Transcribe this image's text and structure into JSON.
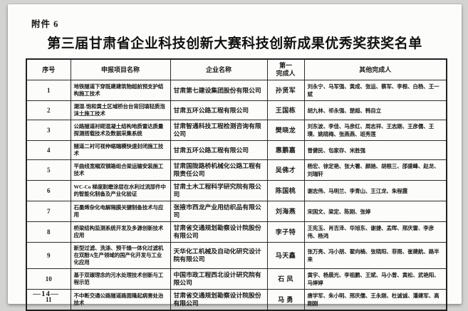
{
  "page": {
    "attachment_label": "附件 6",
    "title": "第三届甘肃省企业科技创新大赛科技创新成果优秀奖获奖名单",
    "page_number": "—14—"
  },
  "colors": {
    "paper": "#fcfcfa",
    "backdrop": "#d3d3d1",
    "ink": "#191919",
    "table_border": "#2b2b2b"
  },
  "table": {
    "headers": {
      "seq": "序号",
      "project": "申报项目名称",
      "company": "企业名称",
      "first_line1": "第一",
      "first_line2": "完成人",
      "others": "其他完成人"
    },
    "rows": [
      {
        "no": "1",
        "project": "地铁隧道下穿既建建筑物超前预支护结构施工技术",
        "company": "甘肃第七建设集团股份有限公司",
        "first": "孙贤军",
        "others": "刘永宁、马军强、黄成、张运、蔡军、李根、白杨、王一斌"
      },
      {
        "no": "2",
        "project": "潮湿-饱和黄土区域桥台台背回填轻质泡沫土施工技术",
        "company": "甘肃五环公路工程有限公司",
        "first": "王国栋",
        "others": "胡九林、祁永强、楚超、韩自立"
      },
      {
        "no": "3",
        "project": "公路隧道衬砌混凝土结构地质雷达质量探测搭载技术及数据采集系统",
        "company": "甘肃智通科技工程检测咨询有限公司",
        "first": "樊晓龙",
        "others": "刘东波、李佳、马彦红、周志祥、王志刚、王彦儒、王璞、姚晓梅、张燕燕、班秀莲"
      },
      {
        "no": "4",
        "project": "隧道二衬可视伸缩端模快速封闭施工技术",
        "company": "甘肃五环公路工程有限公司",
        "first": "惠鹏嘉",
        "others": "曾健民、包家存、米胜强"
      },
      {
        "no": "5",
        "project": "平曲线宽幅双钢箱组合梁运输安装施工技术",
        "company": "甘肃国陇路桥机械化公路工程有限责任公司",
        "first": "吴佛才",
        "others": "杨宏、徐定艳、张大署、颜驰、胡根三、邵盛峰、赵龙、刘瑞轩"
      },
      {
        "no": "6",
        "project": "WC-Co 梯度耐磨涂层在水利过流部件中的智能化制备及产业化验证",
        "company": "甘肃土木工程科学研究院有限公司",
        "first": "陈国桃",
        "others": "谢志伟、马明兰、李青山、王江龙、朱程霞"
      },
      {
        "no": "7",
        "project": "石墨烯杂化电解隔膜关键制备技术与应用",
        "company": "张掖市西龙产业用纺织品有限公司",
        "first": "刘海燕",
        "others": "宋国文、梁定、陈刚、张婷"
      },
      {
        "no": "8",
        "project": "桥梁结构监测系统开发及多源创新技术应用",
        "company": "甘肃省交通规划勘察设计院股份有限公司",
        "first": "李子特",
        "others": "王宪玉、肖吉泽、华旭东、谢捷、孟晖、邢庆雷、李彦伟、杨鸿"
      },
      {
        "no": "9",
        "project": "新型过滤、洗涤、预干燥一体化过滤机在双酚A生产领域的国产化开发与工业化应用",
        "company": "天华化工机械及自动化研究设计院有限公司",
        "first": "马天鑫",
        "others": "张万亮、冯小朋、翟向楠、张晓阳、菲雨、崔建航、路半来"
      },
      {
        "no": "10",
        "project": "基于双碳理念的污水处理技术创新与工程示范",
        "company": "中国市政工程西北设计研究院有限公司",
        "first": "石 凤",
        "others": "黄宇、杨晨光、李祖鹏、王斌、马小曾、黄松、武艳阳、马婷婷"
      },
      {
        "no": "11",
        "project": "不中断交通公路隧道路面隆起病害处治技术",
        "company": "甘肃省交通规划勘察设计院股份有限公司",
        "first": "马 勇",
        "others": "唐学军、朱小明、邢庆儒、王永刚、杜诚诚、潘建军、高刚刚"
      }
    ]
  }
}
